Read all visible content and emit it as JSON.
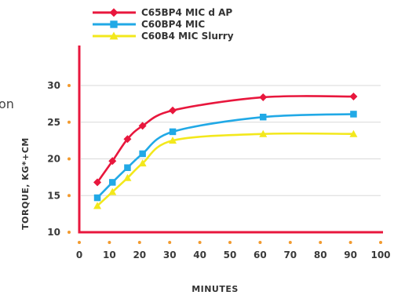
{
  "edge_fragment": "on",
  "chart_data": {
    "type": "line",
    "x": [
      6,
      11,
      16,
      21,
      31,
      61,
      91
    ],
    "series": [
      {
        "name": "C65BP4 MIC d AP",
        "color": "#e8173d",
        "marker": "diamond",
        "values": [
          16.8,
          19.7,
          22.7,
          24.5,
          26.6,
          28.4,
          28.5
        ]
      },
      {
        "name": "C60BP4 MIC",
        "color": "#21a9e6",
        "marker": "square",
        "values": [
          14.7,
          16.8,
          18.8,
          20.7,
          23.7,
          25.7,
          26.1
        ]
      },
      {
        "name": "C60B4 MIC Slurry",
        "color": "#f3e81c",
        "marker": "triangle",
        "values": [
          13.6,
          15.5,
          17.4,
          19.4,
          22.5,
          23.4,
          23.4
        ]
      }
    ],
    "xlabel": "MINUTES",
    "ylabel": "TORQUE, KG*+CM",
    "xlim": [
      0,
      100
    ],
    "ylim": [
      10,
      30
    ],
    "xticks": [
      "0",
      "10",
      "20",
      "30",
      "40",
      "50",
      "60",
      "70",
      "80",
      "90",
      "100"
    ],
    "yticks": [
      "10",
      "15",
      "20",
      "25",
      "30"
    ],
    "grid": "horizontal",
    "legend_position": "top",
    "axis_color": "#e8173d",
    "tick_dot_color": "#f29a2e",
    "grid_color": "#d9d9d9"
  }
}
